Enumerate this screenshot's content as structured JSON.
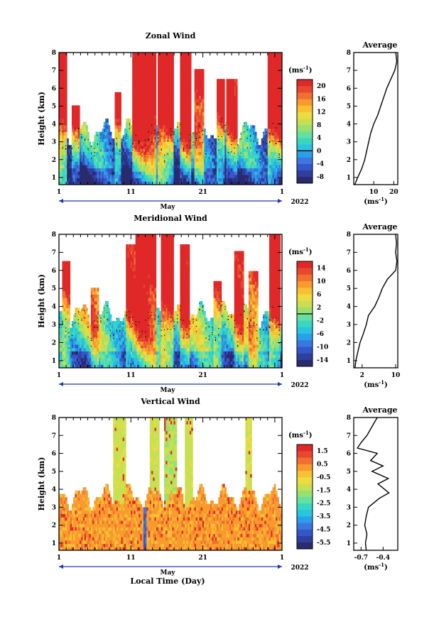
{
  "figure": {
    "xlabel": "Local Time (Day)",
    "month_label": "May",
    "year_label": "2022",
    "y_axis_label": "Height (km)",
    "unit_label": "(ms",
    "unit_sup": "-1",
    "unit_close": ")",
    "avg_title": "Average"
  },
  "chart_data": [
    {
      "type": "heatmap",
      "title": "Zonal Wind",
      "ylabel": "Height (km)",
      "xlabel": "May",
      "x_ticks": [
        "1",
        "11",
        "21",
        "1"
      ],
      "y_ticks": [
        "1",
        "2",
        "3",
        "4",
        "5",
        "6",
        "7",
        "8"
      ],
      "xlim": [
        1,
        32
      ],
      "ylim": [
        0.6,
        8.0
      ],
      "colorbar_ticks": [
        "20",
        "16",
        "12",
        "8",
        "4",
        "0",
        "-4",
        "-8"
      ],
      "colorbar_range": [
        -10,
        22
      ],
      "colorbar_unit": "(ms-1)",
      "bursts": [
        {
          "day": 1.3,
          "width": 0.7,
          "top": 8.0,
          "strength": 24
        },
        {
          "day": 3.3,
          "width": 0.5,
          "top": 5.0,
          "strength": 18
        },
        {
          "day": 9.2,
          "width": 0.5,
          "top": 5.8,
          "strength": 20
        },
        {
          "day": 12.0,
          "width": 0.8,
          "top": 8.0,
          "strength": 24
        },
        {
          "day": 13.5,
          "width": 0.9,
          "top": 8.0,
          "strength": 26
        },
        {
          "day": 15.8,
          "width": 1.1,
          "top": 8.0,
          "strength": 28
        },
        {
          "day": 18.6,
          "width": 0.7,
          "top": 8.0,
          "strength": 24
        },
        {
          "day": 20.5,
          "width": 0.6,
          "top": 7.0,
          "strength": 20
        },
        {
          "day": 23.5,
          "width": 0.6,
          "top": 6.5,
          "strength": 18
        },
        {
          "day": 25.0,
          "width": 0.7,
          "top": 6.5,
          "strength": 18
        },
        {
          "day": 31.0,
          "width": 0.9,
          "top": 8.0,
          "strength": 24
        }
      ],
      "profile": {
        "title": "Average",
        "x_ticks": [
          "10",
          "20"
        ],
        "xlabel": "(ms-1)",
        "xlim": [
          0,
          22
        ],
        "height": [
          0.6,
          1.0,
          1.5,
          2.0,
          2.5,
          3.0,
          3.5,
          4.0,
          4.5,
          5.0,
          5.5,
          6.0,
          6.5,
          7.0,
          7.5,
          8.0
        ],
        "value": [
          0.5,
          2.0,
          4.0,
          5.5,
          6.5,
          7.5,
          8.5,
          10.0,
          12.0,
          13.5,
          15.0,
          16.5,
          18.5,
          20.5,
          21.5,
          21.0
        ]
      }
    },
    {
      "type": "heatmap",
      "title": "Meridional Wind",
      "ylabel": "Height (km)",
      "xlabel": "May",
      "x_ticks": [
        "1",
        "11",
        "21",
        "1"
      ],
      "y_ticks": [
        "1",
        "2",
        "3",
        "4",
        "5",
        "6",
        "7",
        "8"
      ],
      "xlim": [
        1,
        32
      ],
      "ylim": [
        0.6,
        8.0
      ],
      "colorbar_ticks": [
        "14",
        "10",
        "6",
        "2",
        "-2",
        "-6",
        "-10",
        "-14"
      ],
      "colorbar_range": [
        -16,
        16
      ],
      "colorbar_unit": "(ms-1)",
      "bursts": [
        {
          "day": 2.0,
          "width": 0.5,
          "top": 6.5,
          "strength": 10
        },
        {
          "day": 6.0,
          "width": 0.6,
          "top": 5.0,
          "strength": 10
        },
        {
          "day": 11.0,
          "width": 0.7,
          "top": 7.5,
          "strength": 12
        },
        {
          "day": 12.5,
          "width": 0.8,
          "top": 8.0,
          "strength": 18
        },
        {
          "day": 13.9,
          "width": 0.5,
          "top": 8.0,
          "strength": 16
        },
        {
          "day": 16.0,
          "width": 0.9,
          "top": 8.0,
          "strength": 18
        },
        {
          "day": 18.5,
          "width": 0.6,
          "top": 7.5,
          "strength": 16
        },
        {
          "day": 23.0,
          "width": 0.5,
          "top": 5.5,
          "strength": 10
        },
        {
          "day": 26.0,
          "width": 0.7,
          "top": 7.0,
          "strength": 14
        },
        {
          "day": 28.0,
          "width": 0.6,
          "top": 6.0,
          "strength": 12
        },
        {
          "day": 31.0,
          "width": 0.8,
          "top": 8.0,
          "strength": 18
        }
      ],
      "profile": {
        "title": "Average",
        "x_ticks": [
          "2",
          "10"
        ],
        "xlabel": "(ms-1)",
        "xlim": [
          0,
          10.5
        ],
        "height": [
          0.6,
          1.0,
          1.5,
          2.0,
          2.5,
          3.0,
          3.5,
          4.0,
          4.5,
          5.0,
          5.5,
          6.0,
          6.5,
          7.0,
          7.5,
          8.0
        ],
        "value": [
          0.3,
          0.5,
          1.0,
          1.5,
          2.3,
          3.0,
          3.5,
          5.0,
          6.0,
          6.8,
          8.0,
          10.0,
          10.3,
          10.0,
          10.2,
          10.0
        ]
      }
    },
    {
      "type": "heatmap",
      "title": "Vertical Wind",
      "ylabel": "Height (km)",
      "xlabel": "Local Time (Day)",
      "x_ticks": [
        "1",
        "11",
        "21",
        "1"
      ],
      "y_ticks": [
        "1",
        "2",
        "3",
        "4",
        "5",
        "6",
        "7",
        "8"
      ],
      "xlim": [
        1,
        32
      ],
      "ylim": [
        0.6,
        8.0
      ],
      "colorbar_ticks": [
        "1.5",
        "0.5",
        "-0.5",
        "-1.5",
        "-2.5",
        "-3.5",
        "-4.5",
        "-5.5"
      ],
      "colorbar_range": [
        -6.0,
        2.0
      ],
      "colorbar_unit": "(ms-1)",
      "bursts": [
        {
          "day": 9.5,
          "width": 0.9,
          "top": 8.0,
          "strength": -1.2
        },
        {
          "day": 14.3,
          "width": 0.7,
          "top": 8.0,
          "strength": -1.2
        },
        {
          "day": 16.5,
          "width": 0.8,
          "top": 8.0,
          "strength": -1.4
        },
        {
          "day": 19.0,
          "width": 0.6,
          "top": 8.0,
          "strength": -1.2
        },
        {
          "day": 27.3,
          "width": 0.5,
          "top": 8.0,
          "strength": -1.0
        },
        {
          "day": 13.0,
          "width": 0.25,
          "top": 3.0,
          "strength": -4.5
        }
      ],
      "profile": {
        "title": "Average",
        "x_ticks": [
          "-0.7",
          "-0.4"
        ],
        "xlabel": "(ms-1)",
        "xlim": [
          -0.8,
          -0.2
        ],
        "height": [
          0.6,
          1.0,
          1.5,
          2.0,
          2.5,
          3.0,
          3.5,
          3.8,
          4.0,
          4.3,
          4.6,
          5.0,
          5.3,
          5.6,
          6.0,
          6.3,
          6.6,
          7.0,
          7.5,
          8.0
        ],
        "value": [
          -0.63,
          -0.64,
          -0.62,
          -0.65,
          -0.63,
          -0.6,
          -0.45,
          -0.32,
          -0.38,
          -0.47,
          -0.33,
          -0.55,
          -0.4,
          -0.57,
          -0.48,
          -0.75,
          -0.7,
          -0.62,
          -0.55,
          -0.48
        ]
      }
    }
  ]
}
